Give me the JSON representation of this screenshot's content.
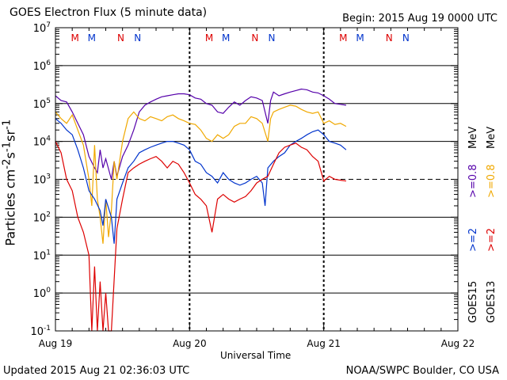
{
  "header": {
    "title": "GOES Electron Flux (5 minute data)",
    "begin": "Begin: 2015 Aug 19 0000 UTC"
  },
  "footer": {
    "updated": "Updated 2015 Aug 21 02:36:03 UTC",
    "credit": "NOAA/SWPC Boulder, CO USA"
  },
  "colors": {
    "goes15_gt2": "#0033cc",
    "goes15_gt08": "#5500aa",
    "goes13_gt2": "#dd0000",
    "goes13_gt08": "#f0a800",
    "marker_m": "#dd0000",
    "marker_m2": "#0033cc"
  },
  "legend": {
    "goes15": "GOES15",
    "goes13": "GOES13",
    "gt2": ">=2",
    "gt08": ">=0.8",
    "unit": "MeV"
  },
  "chart_data": {
    "type": "line",
    "title": "GOES Electron Flux (5 minute data)",
    "xlabel": "Universal Time",
    "ylabel": "Particles cm-2s-1sr-1",
    "yscale": "log",
    "ylim": [
      0.1,
      10000000
    ],
    "xlim": [
      "2015-08-19 00:00",
      "2015-08-22 00:00"
    ],
    "x_ticks": [
      "Aug 19",
      "Aug 20",
      "Aug 21",
      "Aug 22"
    ],
    "y_ticks": [
      "10-1",
      "100",
      "101",
      "102",
      "103",
      "104",
      "105",
      "106",
      "107"
    ],
    "threshold": 1000,
    "markers": [
      {
        "label": "M",
        "hour": 3.5,
        "color": "red"
      },
      {
        "label": "M",
        "hour": 6.5,
        "color": "blue"
      },
      {
        "label": "N",
        "hour": 11.7,
        "color": "red"
      },
      {
        "label": "N",
        "hour": 14.7,
        "color": "blue"
      },
      {
        "label": "M",
        "hour": 27.5,
        "color": "red"
      },
      {
        "label": "M",
        "hour": 30.5,
        "color": "blue"
      },
      {
        "label": "N",
        "hour": 35.7,
        "color": "red"
      },
      {
        "label": "N",
        "hour": 38.7,
        "color": "blue"
      },
      {
        "label": "M",
        "hour": 51.5,
        "color": "red"
      },
      {
        "label": "M",
        "hour": 54.5,
        "color": "blue"
      },
      {
        "label": "N",
        "hour": 59.7,
        "color": "red"
      },
      {
        "label": "N",
        "hour": 62.7,
        "color": "blue"
      }
    ],
    "series": [
      {
        "name": "GOES15 >=0.8 MeV",
        "color": "#5500aa",
        "points": [
          [
            0,
            160000
          ],
          [
            1,
            120000
          ],
          [
            2,
            110000
          ],
          [
            3,
            60000
          ],
          [
            4,
            30000
          ],
          [
            5,
            15000
          ],
          [
            6,
            4000
          ],
          [
            7,
            2000
          ],
          [
            7.5,
            1500
          ],
          [
            8,
            6000
          ],
          [
            8.5,
            2000
          ],
          [
            9,
            3500
          ],
          [
            10,
            1000
          ],
          [
            10.5,
            3000
          ],
          [
            11,
            1200
          ],
          [
            12,
            4000
          ],
          [
            13,
            8000
          ],
          [
            14,
            20000
          ],
          [
            15,
            60000
          ],
          [
            16,
            90000
          ],
          [
            17,
            110000
          ],
          [
            18,
            130000
          ],
          [
            19,
            150000
          ],
          [
            20,
            160000
          ],
          [
            21,
            170000
          ],
          [
            22,
            180000
          ],
          [
            23,
            180000
          ],
          [
            24,
            170000
          ],
          [
            25,
            140000
          ],
          [
            26,
            130000
          ],
          [
            27,
            100000
          ],
          [
            28,
            90000
          ],
          [
            29,
            60000
          ],
          [
            30,
            55000
          ],
          [
            31,
            80000
          ],
          [
            32,
            110000
          ],
          [
            33,
            90000
          ],
          [
            34,
            120000
          ],
          [
            35,
            150000
          ],
          [
            36,
            140000
          ],
          [
            37,
            120000
          ],
          [
            38,
            30000
          ],
          [
            38.5,
            120000
          ],
          [
            39,
            200000
          ],
          [
            40,
            160000
          ],
          [
            41,
            180000
          ],
          [
            42,
            200000
          ],
          [
            43,
            220000
          ],
          [
            44,
            240000
          ],
          [
            45,
            230000
          ],
          [
            46,
            200000
          ],
          [
            47,
            190000
          ],
          [
            48,
            160000
          ],
          [
            49,
            130000
          ],
          [
            50,
            100000
          ],
          [
            51,
            95000
          ],
          [
            52,
            90000
          ]
        ]
      },
      {
        "name": "GOES13 >=0.8 MeV",
        "color": "#f0a800",
        "points": [
          [
            0,
            60000
          ],
          [
            1,
            40000
          ],
          [
            2,
            30000
          ],
          [
            3,
            50000
          ],
          [
            4,
            20000
          ],
          [
            5,
            8000
          ],
          [
            6,
            1000
          ],
          [
            6.5,
            200
          ],
          [
            7,
            8000
          ],
          [
            7.5,
            300
          ],
          [
            8,
            100
          ],
          [
            8.5,
            20
          ],
          [
            9,
            300
          ],
          [
            9.5,
            30
          ],
          [
            10,
            150
          ],
          [
            10.5,
            3000
          ],
          [
            11,
            1000
          ],
          [
            12,
            10000
          ],
          [
            13,
            40000
          ],
          [
            14,
            60000
          ],
          [
            15,
            40000
          ],
          [
            16,
            35000
          ],
          [
            17,
            45000
          ],
          [
            18,
            40000
          ],
          [
            19,
            35000
          ],
          [
            20,
            45000
          ],
          [
            21,
            50000
          ],
          [
            22,
            40000
          ],
          [
            23,
            35000
          ],
          [
            24,
            30000
          ],
          [
            25,
            28000
          ],
          [
            26,
            20000
          ],
          [
            27,
            12000
          ],
          [
            28,
            10000
          ],
          [
            29,
            15000
          ],
          [
            30,
            12000
          ],
          [
            31,
            15000
          ],
          [
            32,
            25000
          ],
          [
            33,
            30000
          ],
          [
            34,
            30000
          ],
          [
            35,
            45000
          ],
          [
            36,
            40000
          ],
          [
            37,
            30000
          ],
          [
            38,
            10000
          ],
          [
            38.5,
            40000
          ],
          [
            39,
            60000
          ],
          [
            40,
            70000
          ],
          [
            41,
            80000
          ],
          [
            42,
            90000
          ],
          [
            43,
            85000
          ],
          [
            44,
            70000
          ],
          [
            45,
            60000
          ],
          [
            46,
            55000
          ],
          [
            47,
            60000
          ],
          [
            48,
            30000
          ],
          [
            49,
            35000
          ],
          [
            50,
            28000
          ],
          [
            51,
            30000
          ],
          [
            52,
            25000
          ]
        ]
      },
      {
        "name": "GOES15 >=2 MeV",
        "color": "#0033cc",
        "points": [
          [
            0,
            40000
          ],
          [
            1,
            30000
          ],
          [
            2,
            20000
          ],
          [
            3,
            15000
          ],
          [
            4,
            6000
          ],
          [
            5,
            2000
          ],
          [
            6,
            500
          ],
          [
            7,
            300
          ],
          [
            8,
            150
          ],
          [
            8.5,
            60
          ],
          [
            9,
            300
          ],
          [
            10,
            100
          ],
          [
            10.5,
            20
          ],
          [
            11,
            300
          ],
          [
            12,
            800
          ],
          [
            13,
            2000
          ],
          [
            14,
            3000
          ],
          [
            15,
            5000
          ],
          [
            16,
            6000
          ],
          [
            17,
            7000
          ],
          [
            18,
            8000
          ],
          [
            19,
            9000
          ],
          [
            20,
            10000
          ],
          [
            21,
            10000
          ],
          [
            22,
            9000
          ],
          [
            23,
            8000
          ],
          [
            24,
            6000
          ],
          [
            25,
            3000
          ],
          [
            26,
            2500
          ],
          [
            27,
            1500
          ],
          [
            28,
            1200
          ],
          [
            29,
            800
          ],
          [
            30,
            1500
          ],
          [
            31,
            1000
          ],
          [
            32,
            800
          ],
          [
            33,
            700
          ],
          [
            34,
            800
          ],
          [
            35,
            1000
          ],
          [
            36,
            1200
          ],
          [
            37,
            800
          ],
          [
            37.5,
            200
          ],
          [
            38,
            2000
          ],
          [
            39,
            3000
          ],
          [
            40,
            4000
          ],
          [
            41,
            5000
          ],
          [
            42,
            8000
          ],
          [
            43,
            10000
          ],
          [
            44,
            12000
          ],
          [
            45,
            15000
          ],
          [
            46,
            18000
          ],
          [
            47,
            20000
          ],
          [
            48,
            15000
          ],
          [
            49,
            10000
          ],
          [
            50,
            9000
          ],
          [
            51,
            8000
          ],
          [
            52,
            6000
          ]
        ]
      },
      {
        "name": "GOES13 >=2 MeV",
        "color": "#dd0000",
        "points": [
          [
            0,
            10000
          ],
          [
            1,
            5000
          ],
          [
            2,
            1000
          ],
          [
            3,
            500
          ],
          [
            4,
            100
          ],
          [
            5,
            40
          ],
          [
            6,
            10
          ],
          [
            6.5,
            0.1
          ],
          [
            7,
            5
          ],
          [
            7.5,
            0.1
          ],
          [
            8,
            2
          ],
          [
            8.5,
            0.1
          ],
          [
            9,
            1
          ],
          [
            9.5,
            0.1
          ],
          [
            10,
            0.1
          ],
          [
            11,
            50
          ],
          [
            12,
            300
          ],
          [
            13,
            1500
          ],
          [
            14,
            2000
          ],
          [
            15,
            2500
          ],
          [
            16,
            3000
          ],
          [
            17,
            3500
          ],
          [
            18,
            4000
          ],
          [
            19,
            3000
          ],
          [
            20,
            2000
          ],
          [
            21,
            3000
          ],
          [
            22,
            2500
          ],
          [
            23,
            1500
          ],
          [
            24,
            800
          ],
          [
            25,
            400
          ],
          [
            26,
            300
          ],
          [
            27,
            200
          ],
          [
            28,
            40
          ],
          [
            29,
            300
          ],
          [
            30,
            400
          ],
          [
            31,
            300
          ],
          [
            32,
            250
          ],
          [
            33,
            300
          ],
          [
            34,
            350
          ],
          [
            35,
            500
          ],
          [
            36,
            800
          ],
          [
            37,
            1000
          ],
          [
            38,
            1200
          ],
          [
            39,
            2500
          ],
          [
            40,
            5000
          ],
          [
            41,
            7000
          ],
          [
            42,
            8000
          ],
          [
            43,
            9000
          ],
          [
            44,
            7000
          ],
          [
            45,
            6000
          ],
          [
            46,
            4000
          ],
          [
            47,
            3000
          ],
          [
            48,
            900
          ],
          [
            49,
            1200
          ],
          [
            50,
            1000
          ],
          [
            51,
            950
          ],
          [
            52,
            900
          ]
        ]
      }
    ]
  }
}
